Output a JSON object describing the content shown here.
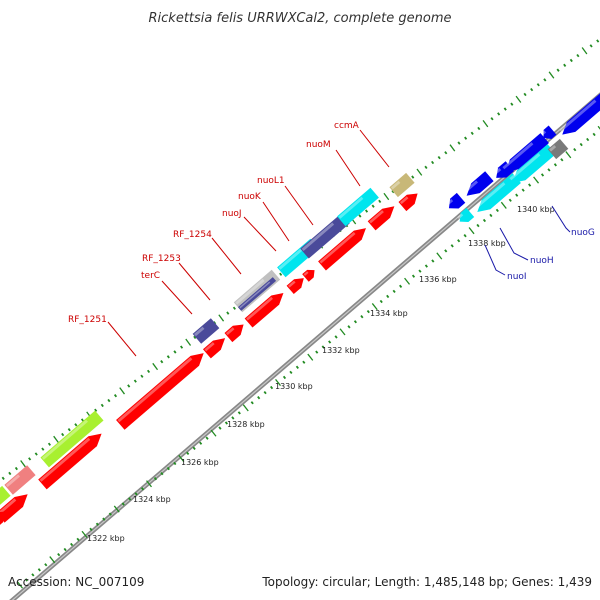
{
  "title": "Rickettsia felis URRWXCal2, complete genome",
  "footer": {
    "accession": "Accession: NC_007109",
    "stats": "Topology: circular; Length: 1,485,148 bp; Genes: 1,439"
  },
  "colors": {
    "forward_strand": "#ff0000",
    "reverse_strand": "#0000ee",
    "rrna_cyan": "#00e5ee",
    "navy": "#4a4a9a",
    "lime": "#a8f030",
    "pink": "#f08080",
    "tan": "#c8b878",
    "gray": "#c0c0c0",
    "backbone": "#808080",
    "tick_marks": "#228b22"
  },
  "axis": {
    "unit": "kbp",
    "labels": [
      "1322 kbp",
      "1324 kbp",
      "1326 kbp",
      "1328 kbp",
      "1330 kbp",
      "1332 kbp",
      "1334 kbp",
      "1336 kbp",
      "1338 kbp",
      "1340 kbp"
    ]
  },
  "gene_labels": {
    "forward": [
      "RF_1251",
      "terC",
      "RF_1253",
      "RF_1254",
      "nuoJ",
      "nuoK",
      "nuoL1",
      "nuoM",
      "ccmA"
    ],
    "reverse": [
      "nuoI",
      "nuoH",
      "nuoG"
    ]
  }
}
